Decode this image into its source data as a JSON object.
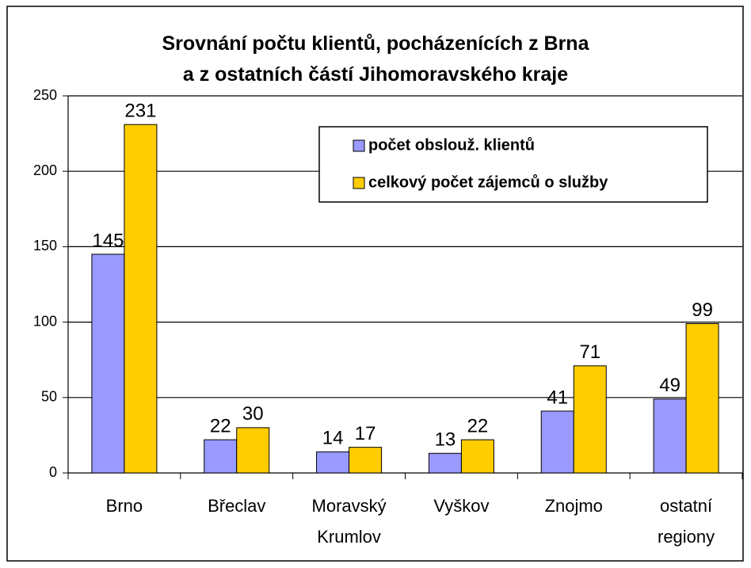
{
  "chart_data": {
    "type": "bar",
    "title": "Srovnání počtu klientů, pocházenících z Brna\na z ostatních částí Jihomoravského kraje",
    "categories": [
      "Brno",
      "Břeclav",
      "Moravský\nKrumlov",
      "Vyškov",
      "Znojmo",
      "ostatní\nregiony"
    ],
    "series": [
      {
        "name": "počet obslouž. klientů",
        "color": "#9999ff",
        "values": [
          145,
          22,
          14,
          13,
          41,
          49
        ]
      },
      {
        "name": "celkový počet zájemců o služby",
        "color": "#ffcc00",
        "values": [
          231,
          30,
          17,
          22,
          71,
          99
        ]
      }
    ],
    "ylim": [
      0,
      250
    ],
    "yticks": [
      0,
      50,
      100,
      150,
      200,
      250
    ],
    "grid": true,
    "legend": "upper right"
  }
}
